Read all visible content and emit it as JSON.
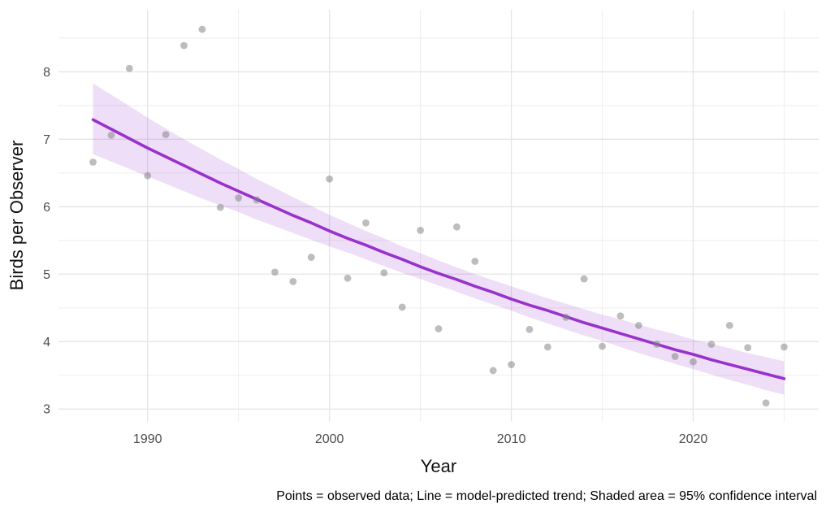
{
  "figure": {
    "background": "#ffffff",
    "caption": "Points = observed data; Line = model-predicted trend; Shaded area = 95% confidence interval"
  },
  "chart_data": {
    "type": "scatter",
    "title": "",
    "xlabel": "Year",
    "ylabel": "Birds per Observer",
    "xlim": [
      1985.1,
      2026.9
    ],
    "ylim": [
      2.81,
      8.92
    ],
    "x_major_ticks": [
      1990,
      2000,
      2010,
      2020
    ],
    "x_minor_ticks": [
      1995,
      2005,
      2015,
      2025
    ],
    "y_major_ticks": [
      3,
      4,
      5,
      6,
      7,
      8
    ],
    "y_minor_ticks": [
      3.5,
      4.5,
      5.5,
      6.5,
      7.5,
      8.5
    ],
    "grid": "major+minor, no axis lines, no tick marks",
    "legend": "none",
    "years": [
      1987,
      1988,
      1989,
      1990,
      1991,
      1992,
      1993,
      1994,
      1995,
      1996,
      1997,
      1998,
      1999,
      2000,
      2001,
      2002,
      2003,
      2004,
      2005,
      2006,
      2007,
      2008,
      2009,
      2010,
      2011,
      2012,
      2013,
      2014,
      2015,
      2016,
      2017,
      2018,
      2019,
      2020,
      2021,
      2022,
      2023,
      2024,
      2025
    ],
    "observed": [
      6.66,
      7.06,
      8.05,
      6.46,
      7.07,
      8.39,
      8.63,
      5.99,
      6.13,
      6.1,
      5.03,
      4.89,
      5.25,
      6.41,
      4.94,
      5.76,
      5.02,
      4.51,
      5.65,
      4.19,
      5.7,
      5.19,
      3.57,
      3.66,
      4.18,
      3.92,
      4.36,
      4.93,
      3.93,
      4.38,
      4.24,
      3.96,
      3.78,
      3.7,
      3.96,
      4.24,
      3.91,
      3.09,
      3.92
    ],
    "trend": [
      7.29,
      7.15,
      7.01,
      6.87,
      6.74,
      6.61,
      6.48,
      6.35,
      6.23,
      6.11,
      5.99,
      5.87,
      5.76,
      5.64,
      5.53,
      5.43,
      5.32,
      5.22,
      5.11,
      5.01,
      4.92,
      4.82,
      4.73,
      4.63,
      4.54,
      4.46,
      4.37,
      4.28,
      4.2,
      4.12,
      4.04,
      3.96,
      3.88,
      3.81,
      3.73,
      3.66,
      3.59,
      3.52,
      3.45
    ],
    "ci_lower": [
      6.78,
      6.67,
      6.56,
      6.45,
      6.34,
      6.23,
      6.12,
      6.02,
      5.92,
      5.81,
      5.71,
      5.61,
      5.51,
      5.41,
      5.32,
      5.22,
      5.12,
      5.02,
      4.93,
      4.83,
      4.74,
      4.64,
      4.55,
      4.46,
      4.36,
      4.27,
      4.18,
      4.09,
      4.01,
      3.92,
      3.83,
      3.75,
      3.67,
      3.59,
      3.51,
      3.43,
      3.36,
      3.28,
      3.21
    ],
    "ci_upper": [
      7.83,
      7.66,
      7.49,
      7.32,
      7.16,
      7.0,
      6.85,
      6.7,
      6.56,
      6.41,
      6.28,
      6.14,
      6.01,
      5.88,
      5.76,
      5.64,
      5.53,
      5.41,
      5.31,
      5.2,
      5.1,
      5.0,
      4.91,
      4.82,
      4.73,
      4.64,
      4.56,
      4.48,
      4.4,
      4.33,
      4.25,
      4.18,
      4.11,
      4.03,
      3.97,
      3.9,
      3.83,
      3.77,
      3.71
    ],
    "annotations": [
      "Points = observed data; Line = model-predicted trend; Shaded area = 95% confidence interval"
    ],
    "colors": {
      "trend_line": "#9932CC",
      "ribbon_fill": "#9932CC",
      "ribbon_opacity": 0.16,
      "point_fill": "#808080",
      "point_opacity": 0.52,
      "grid_major": "#e4e4e4",
      "grid_minor": "#efefef",
      "tick_label": "#4d4d4d",
      "axis_title": "#111111",
      "caption_text": "#000000"
    }
  }
}
